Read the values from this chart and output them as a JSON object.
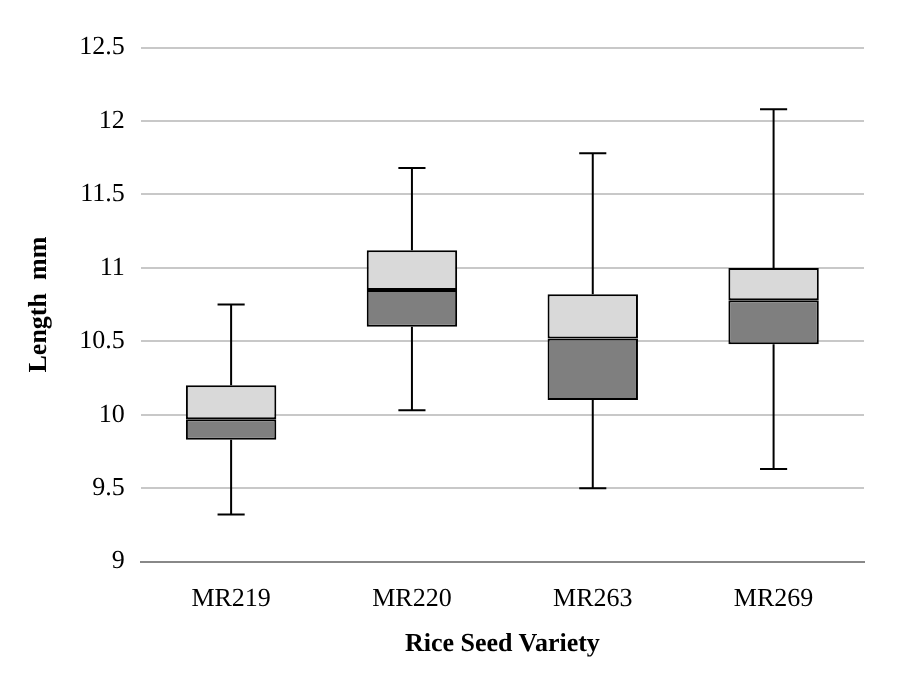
{
  "chart_data": {
    "type": "box",
    "xlabel": "Rice Seed Variety",
    "ylabel": "Length  mm",
    "categories": [
      "MR219",
      "MR220",
      "MR263",
      "MR269"
    ],
    "series": [
      {
        "color": "#7f7f7f",
        "boxes": [
          {
            "low": 9.32,
            "q1": 9.83,
            "median": 9.97,
            "q3": 10.2,
            "high": 10.75
          },
          {
            "low": 10.03,
            "q1": 10.6,
            "median": 10.85,
            "q3": 11.12,
            "high": 11.68
          },
          {
            "low": 9.5,
            "q1": 10.1,
            "median": 10.52,
            "q3": 10.82,
            "high": 11.78
          },
          {
            "low": 9.63,
            "q1": 10.48,
            "median": 10.78,
            "q3": 11.0,
            "high": 12.08
          }
        ]
      }
    ],
    "ylim": [
      9,
      12.5
    ],
    "yticks": [
      9,
      9.5,
      10,
      10.5,
      11,
      11.5,
      12,
      12.5
    ],
    "grid": "y",
    "legend": false
  }
}
